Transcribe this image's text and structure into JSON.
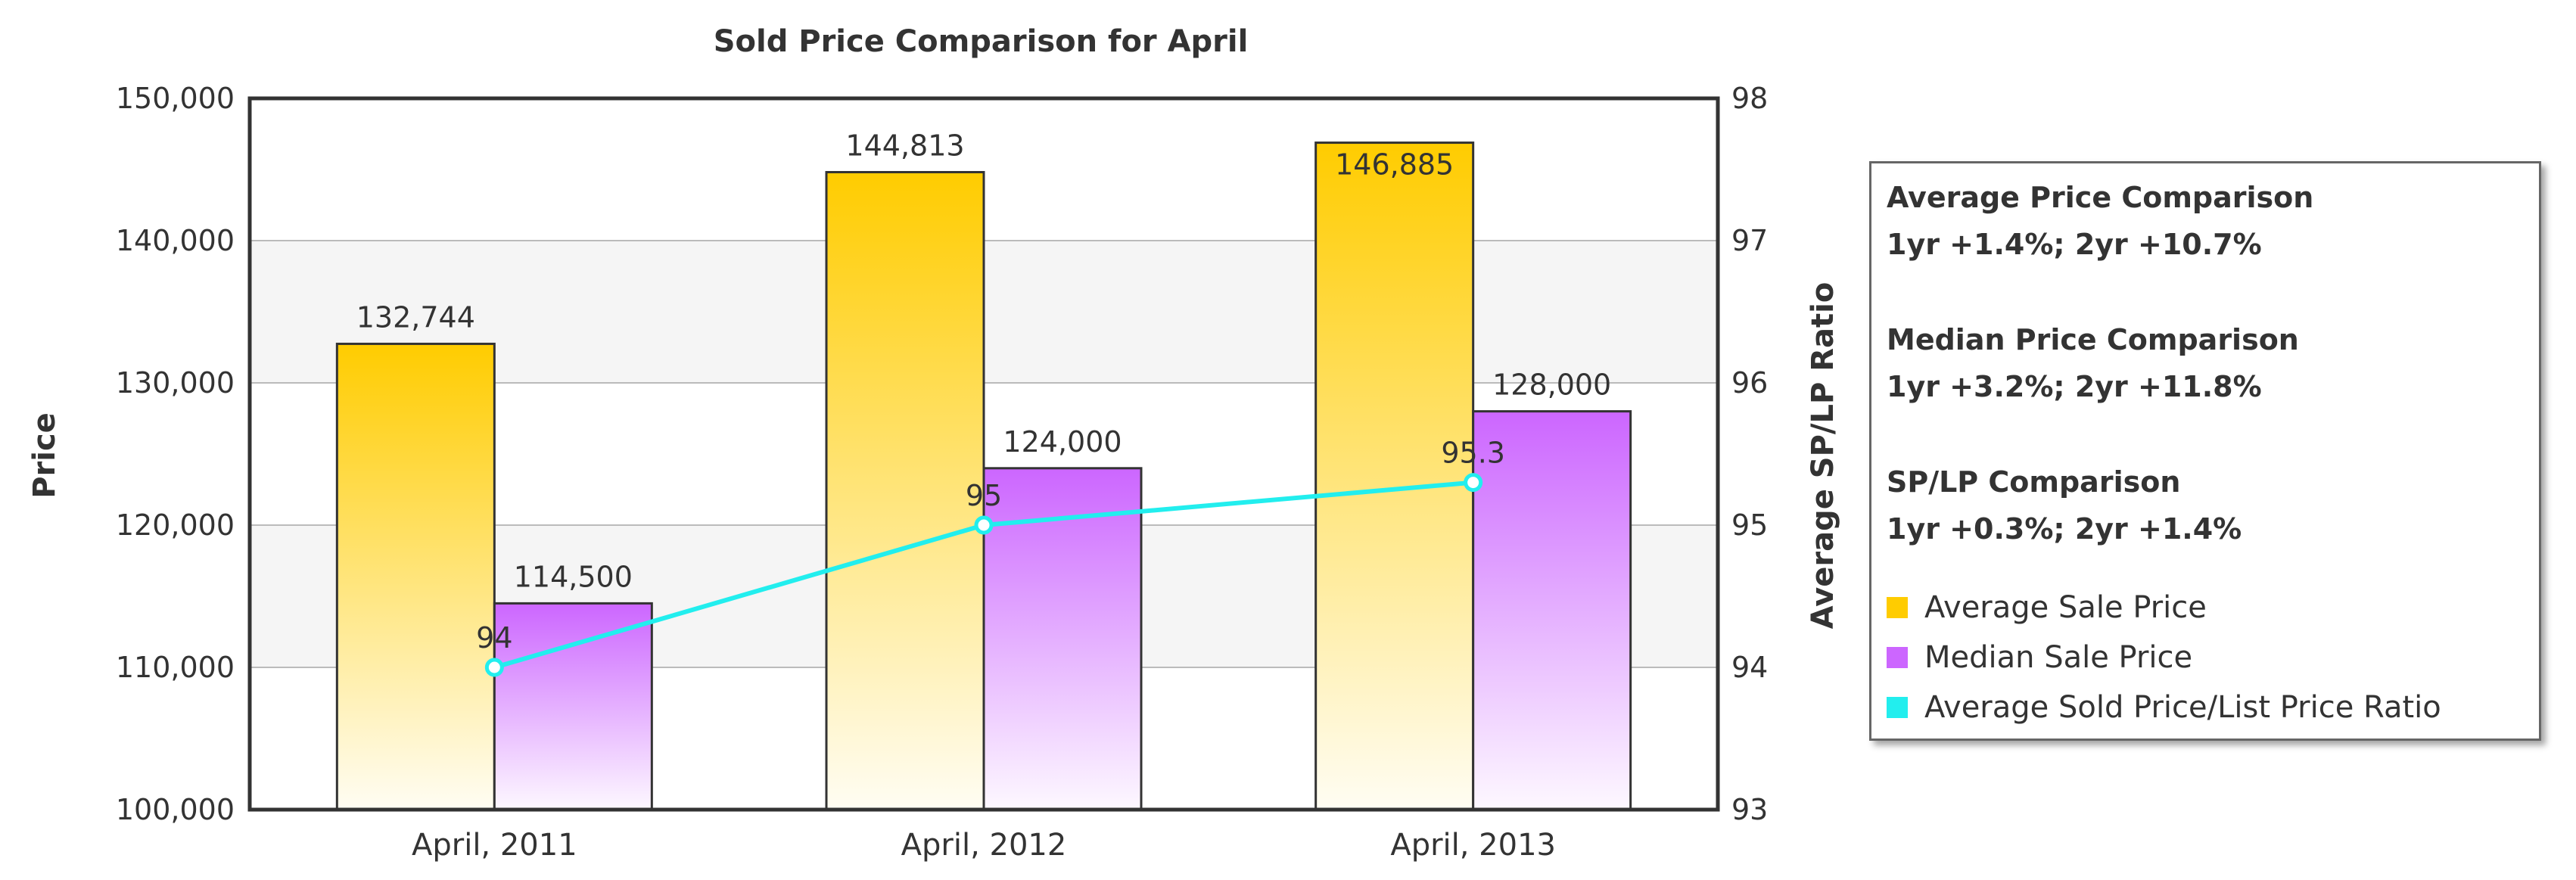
{
  "chart_data": {
    "type": "bar",
    "title": "Sold Price Comparison for April",
    "categories": [
      "April, 2011",
      "April, 2012",
      "April, 2013"
    ],
    "series": [
      {
        "name": "Average Sale Price",
        "kind": "bar",
        "axis": "left",
        "color": "#ffcc00",
        "values": [
          132744,
          144813,
          146885
        ],
        "labels": [
          "132,744",
          "144,813",
          "146,885"
        ]
      },
      {
        "name": "Median Sale Price",
        "kind": "bar",
        "axis": "left",
        "color": "#cc66ff",
        "values": [
          114500,
          124000,
          128000
        ],
        "labels": [
          "114,500",
          "124,000",
          "128,000"
        ]
      },
      {
        "name": "Average Sold Price/List Price Ratio",
        "kind": "line",
        "axis": "right",
        "color": "#22eeee",
        "values": [
          94,
          95,
          95.3
        ],
        "labels": [
          "94",
          "95",
          "95.3"
        ]
      }
    ],
    "ylabel": "Price",
    "ylabel_right": "Average SP/LP Ratio",
    "ylim": [
      100000,
      150000
    ],
    "ylim_right": [
      93,
      98
    ],
    "yticks": [
      100000,
      110000,
      120000,
      130000,
      140000,
      150000
    ],
    "ytick_labels": [
      "100,000",
      "110,000",
      "120,000",
      "130,000",
      "140,000",
      "150,000"
    ],
    "yticks_right": [
      93,
      94,
      95,
      96,
      97,
      98
    ],
    "ytick_labels_right": [
      "93",
      "94",
      "95",
      "96",
      "97",
      "98"
    ],
    "grid": true,
    "legend_position": "right"
  },
  "comparisons": [
    {
      "title": "Average Price Comparison",
      "value": "1yr +1.4%; 2yr +10.7%"
    },
    {
      "title": "Median Price Comparison",
      "value": "1yr +3.2%; 2yr +11.8%"
    },
    {
      "title": "SP/LP Comparison",
      "value": "1yr +0.3%; 2yr +1.4%"
    }
  ]
}
